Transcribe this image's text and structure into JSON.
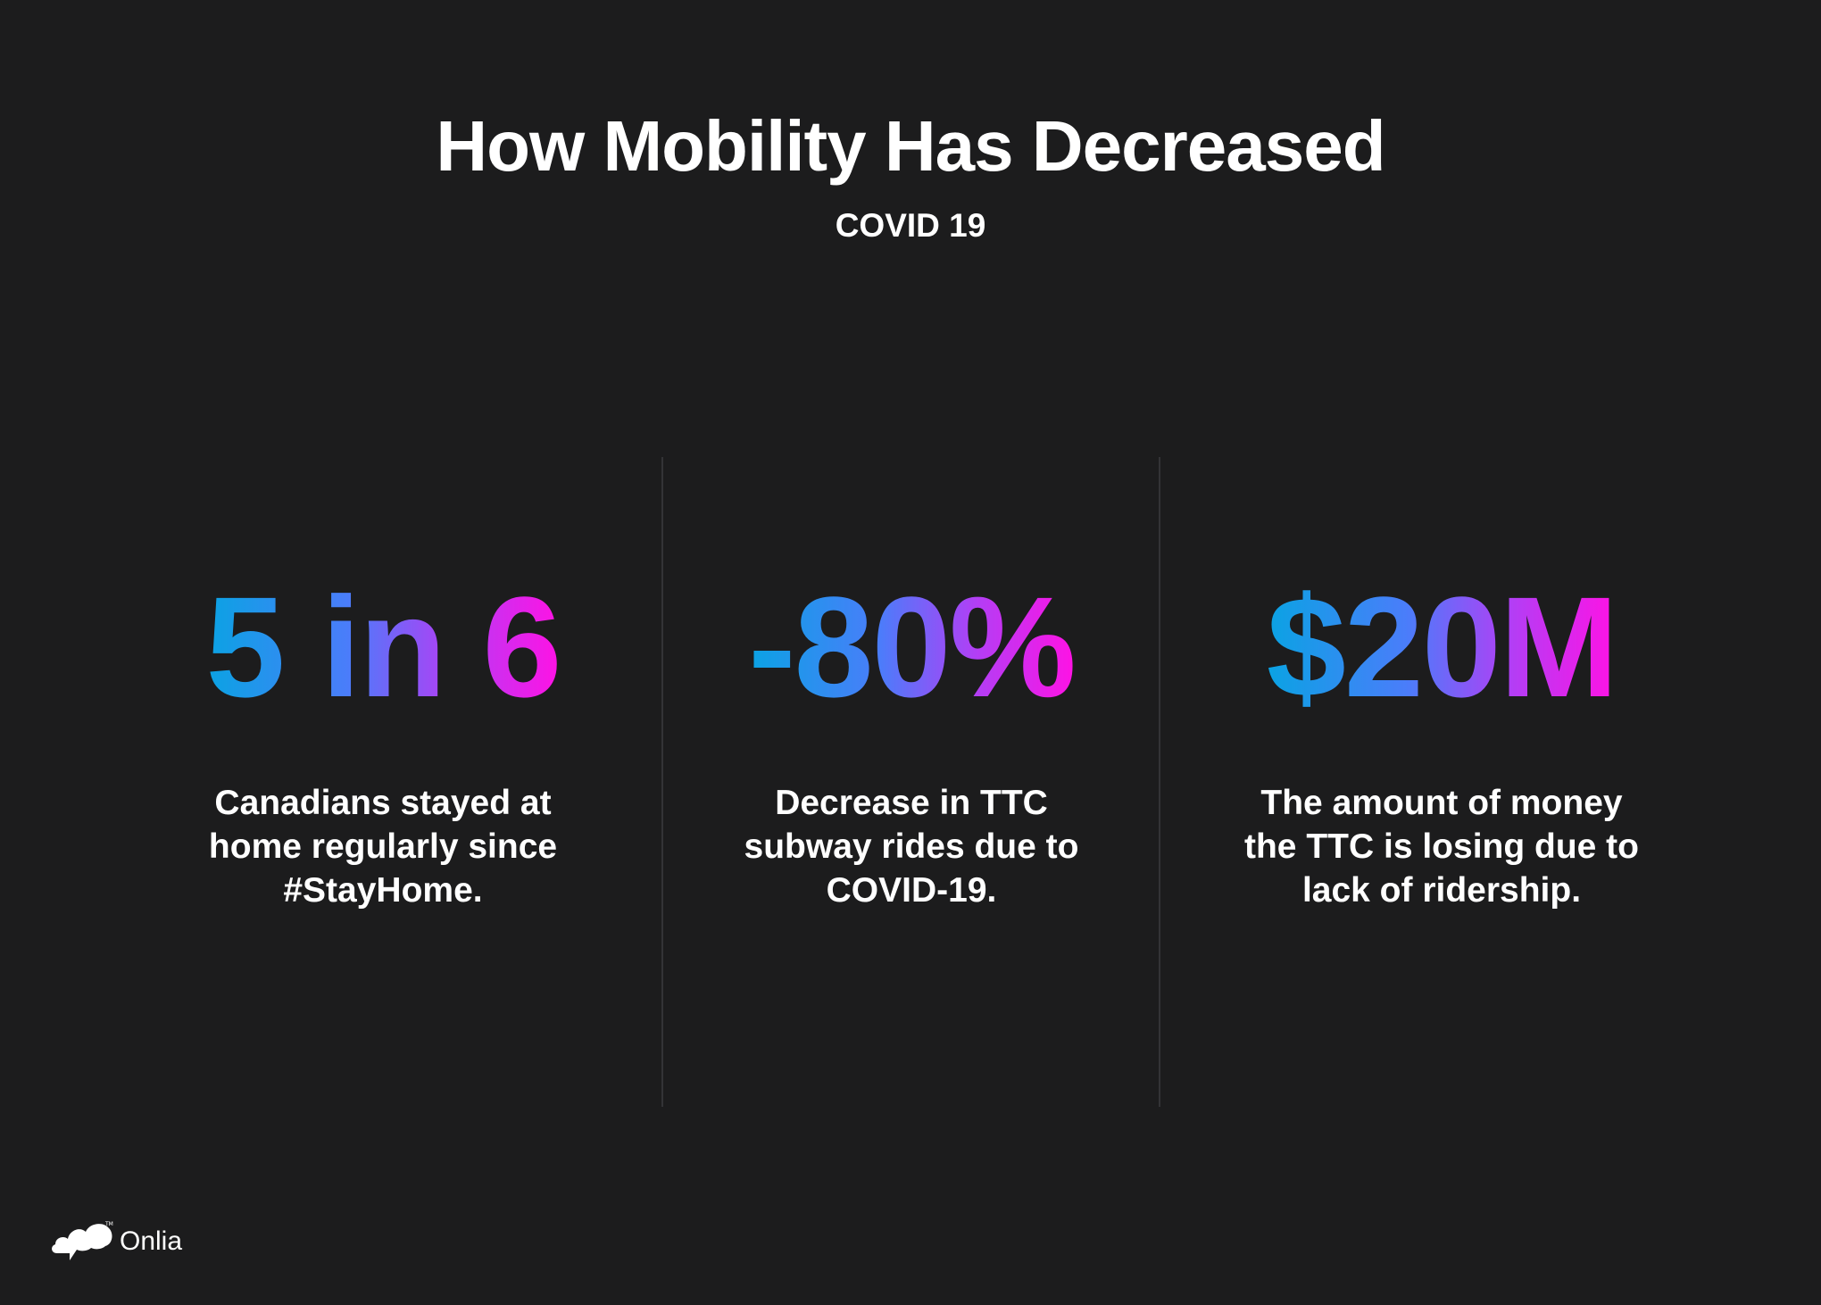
{
  "header": {
    "title": "How Mobility Has Decreased",
    "subtitle": "COVID 19"
  },
  "stats": [
    {
      "value": "5 in 6",
      "description": "Canadians stayed at\nhome regularly since\n#StayHome."
    },
    {
      "value": "-80%",
      "description": "Decrease in TTC\nsubway rides due to\nCOVID-19."
    },
    {
      "value": "$20M",
      "description": "The amount of money\nthe TTC is losing due to\nlack of ridership."
    }
  ],
  "brand": {
    "name": "Onlia",
    "icon": "speech-cloud-icon"
  },
  "colors": {
    "background": "#1c1c1d",
    "gradient_start": "#0aa3e3",
    "gradient_mid": "#b33ef5",
    "gradient_end": "#ff12e4",
    "text": "#ffffff",
    "divider": "#333336"
  }
}
